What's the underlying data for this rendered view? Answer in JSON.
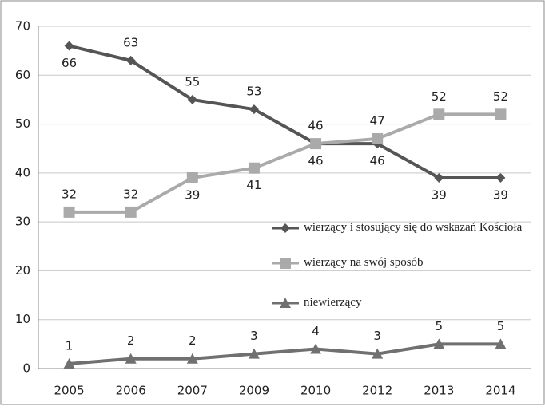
{
  "chart_data": {
    "type": "line",
    "categories": [
      "2005",
      "2006",
      "2007",
      "2009",
      "2010",
      "2012",
      "2013",
      "2014"
    ],
    "series": [
      {
        "name": "wierzący i stosujący się do wskazań Kościoła",
        "color": "#555555",
        "marker": "diamond",
        "values": [
          66,
          63,
          55,
          53,
          46,
          46,
          39,
          39
        ]
      },
      {
        "name": "wierzący na swój sposób",
        "color": "#aaaaaa",
        "marker": "square",
        "values": [
          32,
          32,
          39,
          41,
          46,
          47,
          52,
          52
        ]
      },
      {
        "name": "niewierzący",
        "color": "#707070",
        "marker": "triangle",
        "values": [
          1,
          2,
          2,
          3,
          4,
          3,
          5,
          5
        ]
      }
    ],
    "ylim": [
      0,
      70
    ],
    "yticks": [
      0,
      10,
      20,
      30,
      40,
      50,
      60,
      70
    ],
    "grid": true
  }
}
